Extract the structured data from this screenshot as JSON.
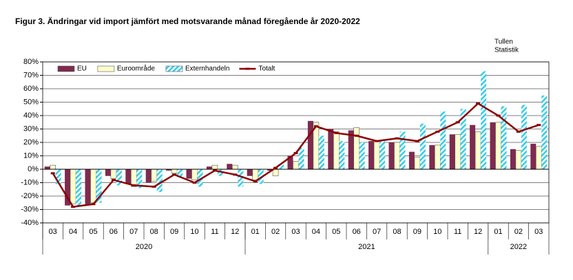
{
  "chart_data": {
    "type": "bar_line",
    "title": "Figur  3. Ändringar vid  import jämfört med motsvarande månad föregående år 2020-2022",
    "source": [
      "Tullen",
      "Statistik"
    ],
    "categories": [
      "03",
      "04",
      "05",
      "06",
      "07",
      "08",
      "09",
      "10",
      "11",
      "12",
      "01",
      "02",
      "03",
      "04",
      "05",
      "06",
      "07",
      "08",
      "09",
      "10",
      "11",
      "12",
      "01",
      "02",
      "03"
    ],
    "year_groups": [
      {
        "label": "2020",
        "count": 10
      },
      {
        "label": "2021",
        "count": 12
      },
      {
        "label": "2022",
        "count": 3
      }
    ],
    "series": [
      {
        "name": "EU",
        "type": "bar",
        "color": "#7f2a4f",
        "values": [
          2,
          -27,
          -26,
          -5,
          -11,
          -10,
          -1,
          -7,
          2,
          4,
          -5,
          -1,
          10,
          36,
          30,
          29,
          21,
          20,
          13,
          18,
          26,
          33,
          35,
          15,
          19
        ]
      },
      {
        "name": "Euroområde",
        "type": "bar",
        "color": "#ffffcc",
        "values": [
          3,
          -26,
          -25,
          -7,
          -13,
          -9,
          -3,
          -8,
          3,
          3,
          -8,
          -5,
          6,
          35,
          28,
          31,
          21,
          20,
          9,
          18,
          26,
          28,
          35,
          14,
          17
        ]
      },
      {
        "name": "Externhandeln",
        "type": "bar",
        "color": "#33ccee",
        "hatched": true,
        "values": [
          -11,
          -27,
          -25,
          -12,
          -14,
          -17,
          -6,
          -13,
          -5,
          -13,
          -11,
          4,
          16,
          25,
          21,
          20,
          21,
          28,
          34,
          43,
          45,
          73,
          47,
          48,
          55
        ]
      },
      {
        "name": "Totalt",
        "type": "line",
        "color": "#8b0000",
        "values": [
          -3,
          -28,
          -26,
          -8,
          -12,
          -13,
          -4,
          -10,
          -1,
          -4,
          -9,
          1,
          12,
          32,
          27,
          25,
          21,
          23,
          21,
          28,
          35,
          49,
          40,
          28,
          33
        ]
      }
    ],
    "ylim": [
      -40,
      80
    ],
    "yticks": [
      {
        "value": -40,
        "label": "-40%"
      },
      {
        "value": -30,
        "label": "-30%"
      },
      {
        "value": -20,
        "label": "-20%"
      },
      {
        "value": -10,
        "label": "-10%"
      },
      {
        "value": 0,
        "label": "0%"
      },
      {
        "value": 10,
        "label": "10%"
      },
      {
        "value": 20,
        "label": "20%"
      },
      {
        "value": 30,
        "label": "30%"
      },
      {
        "value": 40,
        "label": "40%"
      },
      {
        "value": 50,
        "label": "50%"
      },
      {
        "value": 60,
        "label": "60%"
      },
      {
        "value": 70,
        "label": "70%"
      },
      {
        "value": 80,
        "label": "80%"
      }
    ],
    "grid": true,
    "legend": "top-left"
  }
}
